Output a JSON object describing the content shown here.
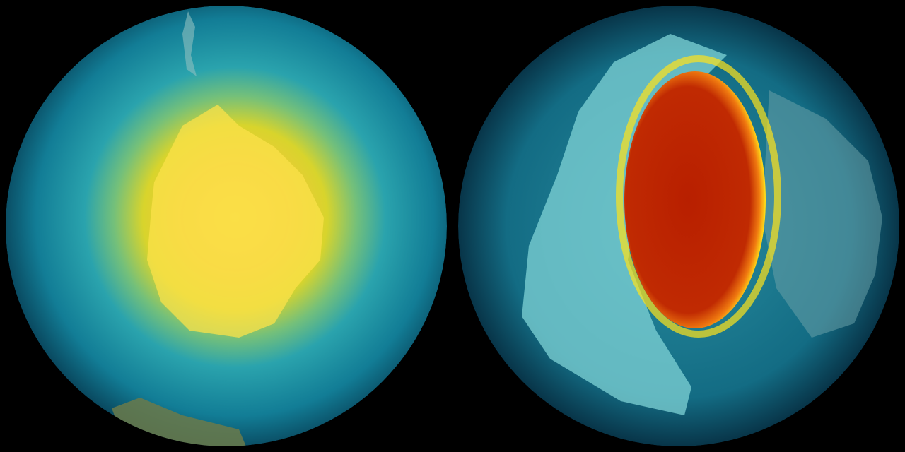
{
  "globes": [
    {
      "view": "south-polar",
      "colors": {
        "ocean": "#0d6f86",
        "rim": "#07374a",
        "mid": "#2aa9b0",
        "ring": "#c8d630",
        "core": "#f5d23a",
        "land": "#6b7a4a"
      }
    },
    {
      "view": "north-polar",
      "colors": {
        "ocean": "#146d84",
        "rim": "#073246",
        "land": "#7fd3d6",
        "hole": "#b81f00",
        "edge": "#f07a10",
        "glow": "#ffe21a"
      }
    }
  ]
}
